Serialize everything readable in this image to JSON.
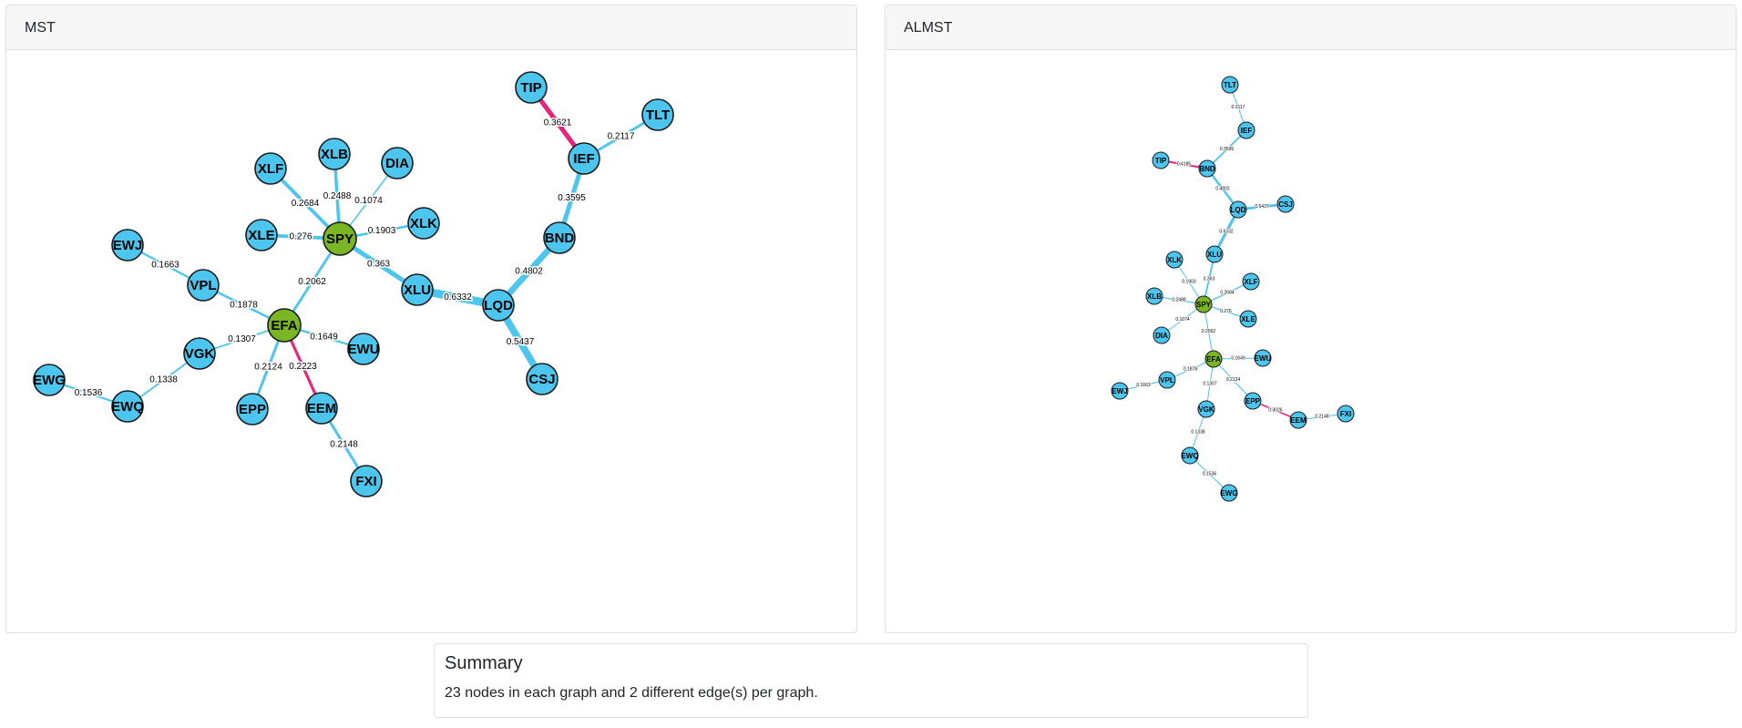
{
  "colors": {
    "node": "#4cc5ef",
    "hub": "#7ab523",
    "edge": "#4cc5ef",
    "diff_edge": "#e8237a",
    "node_border": "#1a1a1a"
  },
  "summary": {
    "title": "Summary",
    "text": "23 nodes in each graph and 2 different edge(s) per graph."
  },
  "graphs": [
    {
      "title": "MST",
      "nodes": [
        {
          "id": "SPY",
          "hub": true
        },
        {
          "id": "EFA",
          "hub": true
        },
        {
          "id": "XLF"
        },
        {
          "id": "XLB"
        },
        {
          "id": "DIA"
        },
        {
          "id": "XLE"
        },
        {
          "id": "XLK"
        },
        {
          "id": "XLU"
        },
        {
          "id": "LQD"
        },
        {
          "id": "BND"
        },
        {
          "id": "IEF"
        },
        {
          "id": "TIP"
        },
        {
          "id": "TLT"
        },
        {
          "id": "CSJ"
        },
        {
          "id": "EWJ"
        },
        {
          "id": "VPL"
        },
        {
          "id": "VGK"
        },
        {
          "id": "EWQ"
        },
        {
          "id": "EWG"
        },
        {
          "id": "EPP"
        },
        {
          "id": "EEM"
        },
        {
          "id": "FXI"
        },
        {
          "id": "EWU"
        }
      ],
      "edges": [
        {
          "source": "SPY",
          "target": "XLF",
          "weight": "0.2684"
        },
        {
          "source": "SPY",
          "target": "XLB",
          "weight": "0.2488"
        },
        {
          "source": "SPY",
          "target": "DIA",
          "weight": "0.1074"
        },
        {
          "source": "SPY",
          "target": "XLE",
          "weight": "0.276"
        },
        {
          "source": "SPY",
          "target": "XLK",
          "weight": "0.1903"
        },
        {
          "source": "SPY",
          "target": "XLU",
          "weight": "0.363"
        },
        {
          "source": "SPY",
          "target": "EFA",
          "weight": "0.2062"
        },
        {
          "source": "XLU",
          "target": "LQD",
          "weight": "0.6332"
        },
        {
          "source": "LQD",
          "target": "BND",
          "weight": "0.4802"
        },
        {
          "source": "LQD",
          "target": "CSJ",
          "weight": "0.5437"
        },
        {
          "source": "BND",
          "target": "IEF",
          "weight": "0.3595"
        },
        {
          "source": "IEF",
          "target": "TIP",
          "weight": "0.3621",
          "diff": true
        },
        {
          "source": "IEF",
          "target": "TLT",
          "weight": "0.2117"
        },
        {
          "source": "EWJ",
          "target": "VPL",
          "weight": "0.1663"
        },
        {
          "source": "VPL",
          "target": "EFA",
          "weight": "0.1878"
        },
        {
          "source": "EFA",
          "target": "VGK",
          "weight": "0.1307"
        },
        {
          "source": "VGK",
          "target": "EWQ",
          "weight": "0.1338"
        },
        {
          "source": "EWQ",
          "target": "EWG",
          "weight": "0.1536"
        },
        {
          "source": "EFA",
          "target": "EPP",
          "weight": "0.2124"
        },
        {
          "source": "EFA",
          "target": "EEM",
          "weight": "0.2223",
          "diff": true
        },
        {
          "source": "EEM",
          "target": "FXI",
          "weight": "0.2148"
        },
        {
          "source": "EFA",
          "target": "EWU",
          "weight": "0.1649"
        }
      ]
    },
    {
      "title": "ALMST",
      "nodes": [
        {
          "id": "TLT"
        },
        {
          "id": "IEF"
        },
        {
          "id": "TIP"
        },
        {
          "id": "BND"
        },
        {
          "id": "LQD"
        },
        {
          "id": "CSJ"
        },
        {
          "id": "XLU"
        },
        {
          "id": "XLK"
        },
        {
          "id": "XLF"
        },
        {
          "id": "XLB"
        },
        {
          "id": "SPY",
          "hub": true
        },
        {
          "id": "XLE"
        },
        {
          "id": "DIA"
        },
        {
          "id": "EFA",
          "hub": true
        },
        {
          "id": "EWU"
        },
        {
          "id": "EWJ"
        },
        {
          "id": "VPL"
        },
        {
          "id": "EPP"
        },
        {
          "id": "FXI"
        },
        {
          "id": "EEM"
        },
        {
          "id": "VGK"
        },
        {
          "id": "EWQ"
        },
        {
          "id": "EWG"
        }
      ],
      "edges": [
        {
          "source": "TLT",
          "target": "IEF",
          "weight": "0.2117"
        },
        {
          "source": "IEF",
          "target": "BND",
          "weight": "0.3595"
        },
        {
          "source": "TIP",
          "target": "BND",
          "weight": "0.4185",
          "diff": true
        },
        {
          "source": "BND",
          "target": "LQD",
          "weight": "0.4802"
        },
        {
          "source": "LQD",
          "target": "CSJ",
          "weight": "0.5437"
        },
        {
          "source": "LQD",
          "target": "XLU",
          "weight": "0.6332"
        },
        {
          "source": "XLU",
          "target": "SPY",
          "weight": "0.363"
        },
        {
          "source": "XLK",
          "target": "SPY",
          "weight": "0.1903"
        },
        {
          "source": "XLF",
          "target": "SPY",
          "weight": "0.2684"
        },
        {
          "source": "XLB",
          "target": "SPY",
          "weight": "0.2488"
        },
        {
          "source": "SPY",
          "target": "XLE",
          "weight": "0.276"
        },
        {
          "source": "DIA",
          "target": "SPY",
          "weight": "0.1074"
        },
        {
          "source": "SPY",
          "target": "EFA",
          "weight": "0.2062"
        },
        {
          "source": "EFA",
          "target": "EWU",
          "weight": "0.1649"
        },
        {
          "source": "EWJ",
          "target": "VPL",
          "weight": "0.1663"
        },
        {
          "source": "VPL",
          "target": "EFA",
          "weight": "0.1878"
        },
        {
          "source": "EFA",
          "target": "EPP",
          "weight": "0.2124"
        },
        {
          "source": "EPP",
          "target": "EEM",
          "weight": "0.3026",
          "diff": true
        },
        {
          "source": "EEM",
          "target": "FXI",
          "weight": "0.2148"
        },
        {
          "source": "EFA",
          "target": "VGK",
          "weight": "0.1307"
        },
        {
          "source": "VGK",
          "target": "EWQ",
          "weight": "0.1338"
        },
        {
          "source": "EWQ",
          "target": "EWG",
          "weight": "0.1536"
        }
      ]
    }
  ]
}
